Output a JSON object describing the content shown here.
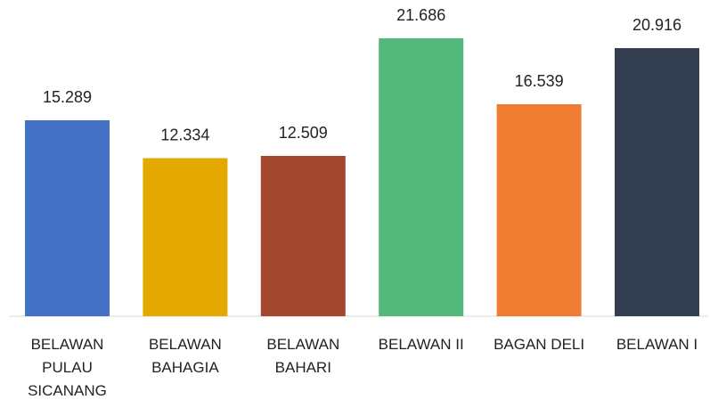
{
  "chart_data": {
    "type": "bar",
    "categories": [
      "BELAWAN PULAU SICANANG",
      "BELAWAN BAHAGIA",
      "BELAWAN BAHARI",
      "BELAWAN II",
      "BAGAN DELI",
      "BELAWAN I"
    ],
    "values": [
      15.289,
      12.334,
      12.509,
      21.686,
      16.539,
      20.916
    ],
    "colors": [
      "#4472c4",
      "#e3a900",
      "#a3472f",
      "#52b87b",
      "#ee7d31",
      "#333f50"
    ]
  }
}
